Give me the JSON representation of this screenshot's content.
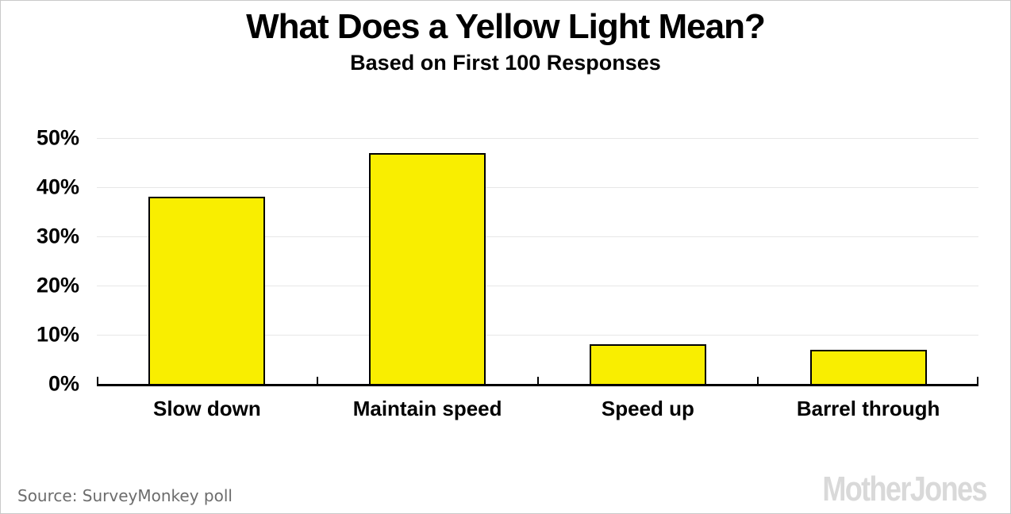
{
  "header": {
    "title": "What Does a Yellow Light Mean?",
    "subtitle": "Based on First 100 Responses"
  },
  "footer": {
    "source": "Source: SurveyMonkey poll",
    "brand": "MotherJones"
  },
  "colors": {
    "bar_fill": "#f9ee00",
    "bar_border": "#000000",
    "gridline": "#e7e7e7",
    "axis": "#000000",
    "title_text": "#000000",
    "source_text": "#6c6c6c",
    "brand_text": "#d9d9d9",
    "frame_border": "#c9c9c9",
    "background": "#ffffff"
  },
  "chart_data": {
    "type": "bar",
    "title": "What Does a Yellow Light Mean?",
    "subtitle": "Based on First 100 Responses",
    "categories": [
      "Slow down",
      "Maintain speed",
      "Speed up",
      "Barrel through"
    ],
    "values": [
      38,
      47,
      8,
      7
    ],
    "xlabel": "",
    "ylabel": "",
    "ylim": [
      0,
      50
    ],
    "yticks": [
      0,
      10,
      20,
      30,
      40,
      50
    ],
    "ytick_labels": [
      "0%",
      "10%",
      "20%",
      "30%",
      "40%",
      "50%"
    ],
    "grid": true,
    "legend": false,
    "bar_color": "#f9ee00",
    "unit": "%"
  }
}
